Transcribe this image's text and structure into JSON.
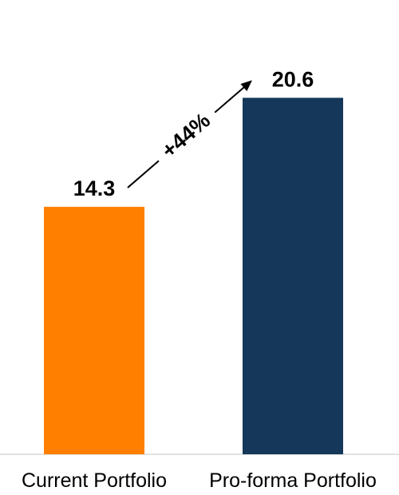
{
  "chart_data": {
    "type": "bar",
    "categories": [
      "Current Portfolio",
      "Pro-forma Portfolio"
    ],
    "values": [
      14.3,
      20.6
    ],
    "value_labels": [
      "14.3",
      "20.6"
    ],
    "colors": [
      "#FF8000",
      "#14375A"
    ],
    "growth_annotation": "+44%",
    "ylim": [
      0,
      21.5
    ],
    "grid": false,
    "legend": "none"
  }
}
